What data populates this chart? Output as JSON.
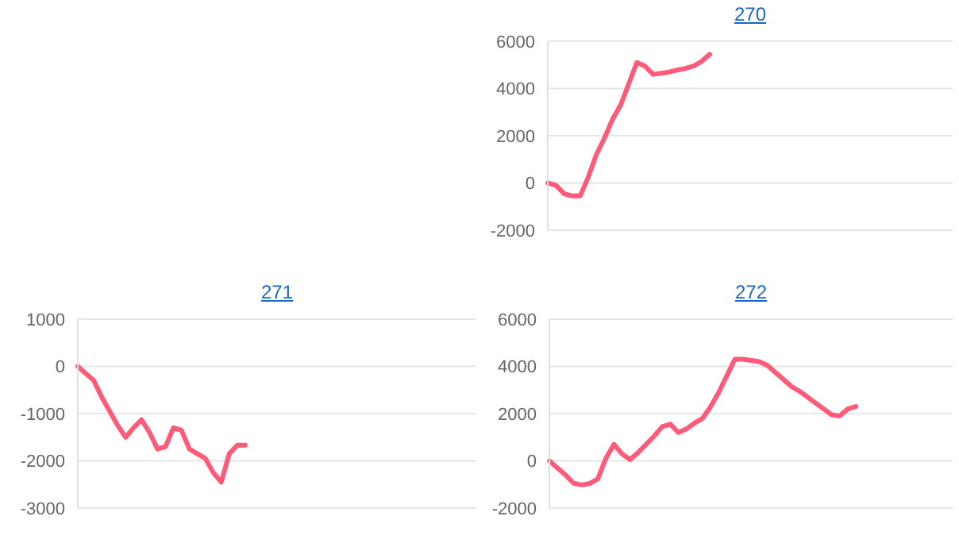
{
  "chart_data": [
    {
      "type": "line",
      "title": "270",
      "color": "#ff5a78",
      "grid": "y",
      "tick_labels": "y",
      "ylim": [
        -2000,
        6000
      ],
      "yticks": [
        -2000,
        0,
        2000,
        4000,
        6000
      ],
      "categories": [
        null,
        null,
        null,
        null,
        null,
        null,
        null,
        null,
        null,
        null,
        null,
        null,
        null,
        null,
        null,
        null,
        null,
        null,
        null,
        null,
        null,
        null,
        null,
        null,
        null,
        null,
        null,
        null,
        null,
        null,
        null,
        null,
        null,
        null,
        null,
        null,
        null,
        null,
        null,
        null,
        null,
        null,
        null,
        null,
        null,
        null,
        null,
        null,
        null,
        null,
        null
      ],
      "values": [
        0,
        -100,
        -450,
        -550,
        -550,
        250,
        1200,
        1900,
        2700,
        3300,
        4200,
        5100,
        4950,
        4600,
        4650,
        4700,
        4780,
        4850,
        4950,
        5150,
        5450,
        null,
        null,
        null,
        null,
        null,
        null,
        null,
        null,
        null,
        null,
        null,
        null,
        null,
        null,
        null,
        null,
        null,
        null,
        null,
        null,
        null,
        null,
        null,
        null,
        null,
        null,
        null,
        null,
        null,
        null
      ]
    },
    {
      "type": "line",
      "title": "271",
      "color": "#ff5a78",
      "grid": "y",
      "tick_labels": "y",
      "ylim": [
        -3000,
        1000
      ],
      "yticks": [
        -3000,
        -2000,
        -1000,
        0,
        1000
      ],
      "categories": [
        null,
        null,
        null,
        null,
        null,
        null,
        null,
        null,
        null,
        null,
        null,
        null,
        null,
        null,
        null,
        null,
        null,
        null,
        null,
        null,
        null,
        null,
        null,
        null,
        null,
        null,
        null,
        null,
        null,
        null,
        null,
        null,
        null,
        null,
        null,
        null,
        null,
        null,
        null,
        null,
        null,
        null,
        null,
        null,
        null,
        null,
        null,
        null,
        null,
        null,
        null
      ],
      "values": [
        0,
        -150,
        -300,
        -650,
        -950,
        -1250,
        -1500,
        -1300,
        -1130,
        -1400,
        -1750,
        -1700,
        -1300,
        -1350,
        -1750,
        -1850,
        -1950,
        -2250,
        -2450,
        -1850,
        -1670,
        -1670,
        null,
        null,
        null,
        null,
        null,
        null,
        null,
        null,
        null,
        null,
        null,
        null,
        null,
        null,
        null,
        null,
        null,
        null,
        null,
        null,
        null,
        null,
        null,
        null,
        null,
        null,
        null,
        null,
        null
      ]
    },
    {
      "type": "line",
      "title": "272",
      "color": "#ff5a78",
      "grid": "y",
      "tick_labels": "y",
      "ylim": [
        -2000,
        6000
      ],
      "yticks": [
        -2000,
        0,
        2000,
        4000,
        6000
      ],
      "categories": [
        null,
        null,
        null,
        null,
        null,
        null,
        null,
        null,
        null,
        null,
        null,
        null,
        null,
        null,
        null,
        null,
        null,
        null,
        null,
        null,
        null,
        null,
        null,
        null,
        null,
        null,
        null,
        null,
        null,
        null,
        null,
        null,
        null,
        null,
        null,
        null,
        null,
        null,
        null,
        null,
        null,
        null,
        null,
        null,
        null,
        null,
        null,
        null,
        null,
        null,
        null
      ],
      "values": [
        0,
        -300,
        -600,
        -950,
        -1020,
        -960,
        -770,
        100,
        700,
        300,
        50,
        350,
        700,
        1050,
        1450,
        1550,
        1200,
        1350,
        1600,
        1800,
        2300,
        2900,
        3600,
        4300,
        4300,
        4250,
        4200,
        4050,
        3750,
        3450,
        3150,
        2950,
        2700,
        2450,
        2200,
        1950,
        1900,
        2200,
        2300,
        null,
        null,
        null,
        null,
        null,
        null,
        null,
        null,
        null,
        null,
        null,
        null
      ]
    }
  ]
}
